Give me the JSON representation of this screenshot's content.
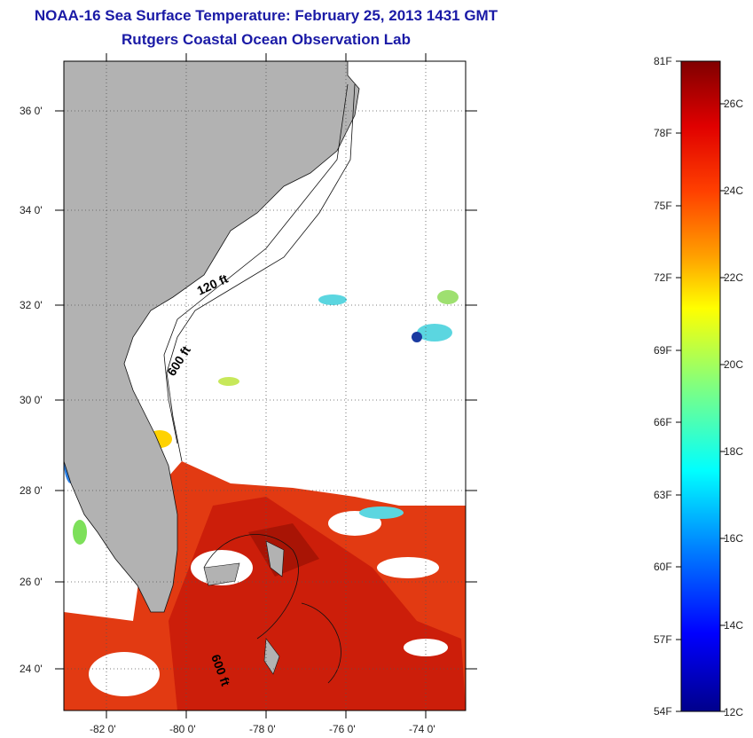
{
  "header": {
    "title": "NOAA-16 Sea Surface Temperature:  February 25, 2013 1431 GMT",
    "subtitle": "Rutgers Coastal Ocean Observation Lab"
  },
  "map": {
    "lat_labels": [
      "36 0'",
      "34 0'",
      "32 0'",
      "30 0'",
      "28 0'",
      "26 0'",
      "24 0'"
    ],
    "lon_labels": [
      "-82 0'",
      "-80 0'",
      "-78 0'",
      "-76 0'",
      "-74 0'"
    ],
    "isobath_labels": [
      "120 ft",
      "600 ft",
      "600 ft"
    ]
  },
  "colorbar": {
    "f_labels": [
      "81F",
      "78F",
      "75F",
      "72F",
      "69F",
      "66F",
      "63F",
      "60F",
      "57F",
      "54F"
    ],
    "c_labels": [
      "26C",
      "24C",
      "22C",
      "20C",
      "18C",
      "16C",
      "14C",
      "12C"
    ]
  },
  "colors": {
    "land": "#b2b2b2",
    "title": "#1a1aa6",
    "warm": "#e23a12",
    "hot": "#c81a0a"
  }
}
